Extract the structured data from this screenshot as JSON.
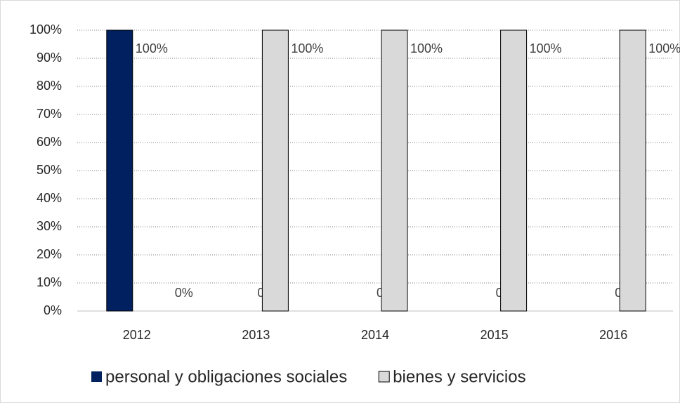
{
  "chart_data": {
    "type": "bar",
    "categories": [
      "2012",
      "2013",
      "2014",
      "2015",
      "2016"
    ],
    "series": [
      {
        "name": "personal y obligaciones sociales",
        "color": "#002060",
        "values": [
          100,
          0,
          0,
          0,
          0
        ],
        "value_labels": [
          "100%",
          "0%",
          "0%",
          "0%",
          "0%"
        ]
      },
      {
        "name": "bienes y servicios",
        "color": "#d9d9d9",
        "values": [
          0,
          100,
          100,
          100,
          100
        ],
        "value_labels": [
          "0%",
          "100%",
          "100%",
          "100%",
          "100%"
        ]
      }
    ],
    "ylim": [
      0,
      100
    ],
    "yticks": [
      {
        "value": 0,
        "label": "0%"
      },
      {
        "value": 10,
        "label": "10%"
      },
      {
        "value": 20,
        "label": "20%"
      },
      {
        "value": 30,
        "label": "30%"
      },
      {
        "value": 40,
        "label": "40%"
      },
      {
        "value": 50,
        "label": "50%"
      },
      {
        "value": 60,
        "label": "60%"
      },
      {
        "value": 70,
        "label": "70%"
      },
      {
        "value": 80,
        "label": "80%"
      },
      {
        "value": 90,
        "label": "90%"
      },
      {
        "value": 100,
        "label": "100%"
      }
    ],
    "grid": true,
    "legend": "bottom"
  }
}
